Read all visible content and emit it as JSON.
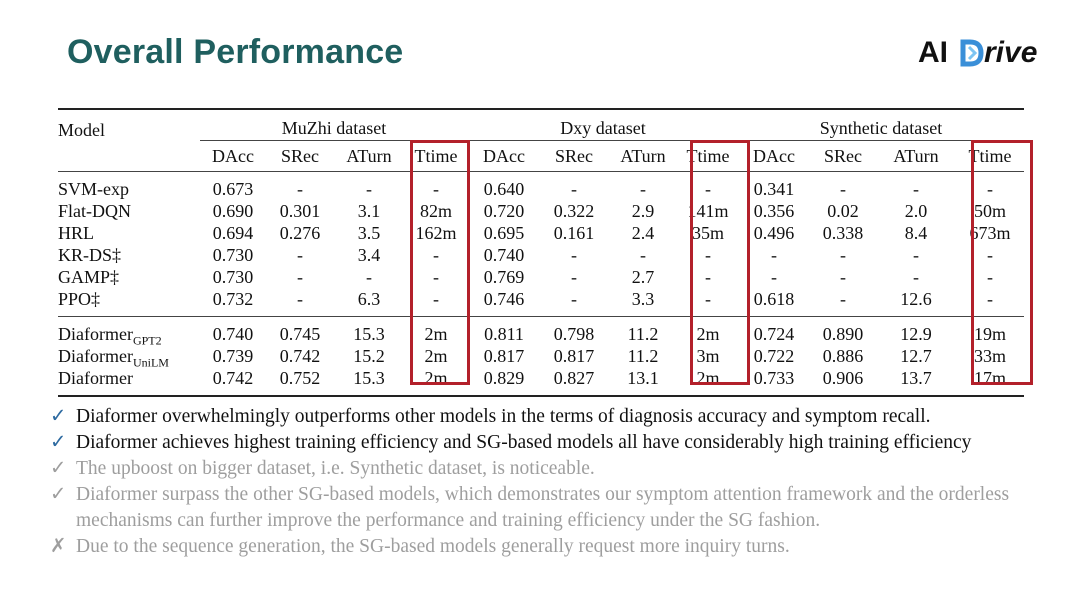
{
  "slide": {
    "title": "Overall Performance",
    "logo": {
      "ai": "AI",
      "drive_mark": "D",
      "drive_rest": "rive"
    }
  },
  "table": {
    "model_header": "Model",
    "datasets": [
      "MuZhi dataset",
      "Dxy dataset",
      "Synthetic dataset"
    ],
    "metrics": [
      "DAcc",
      "SRec",
      "ATurn",
      "Ttime"
    ],
    "baselines": [
      {
        "model": "SVM-exp",
        "cells": [
          "0.673",
          "-",
          "-",
          "-",
          "0.640",
          "-",
          "-",
          "-",
          "0.341",
          "-",
          "-",
          "-"
        ]
      },
      {
        "model": "Flat-DQN",
        "cells": [
          "0.690",
          "0.301",
          "3.1",
          "82m",
          "0.720",
          "0.322",
          "2.9",
          "141m",
          "0.356",
          "0.02",
          "2.0",
          "50m"
        ]
      },
      {
        "model": "HRL",
        "cells": [
          "0.694",
          "0.276",
          "3.5",
          "162m",
          "0.695",
          "0.161",
          "2.4",
          "35m",
          "0.496",
          "0.338",
          "8.4",
          "673m"
        ]
      },
      {
        "model": "KR-DS‡",
        "cells": [
          "0.730",
          "-",
          "3.4",
          "-",
          "0.740",
          "-",
          "-",
          "-",
          "-",
          "-",
          "-",
          "-"
        ]
      },
      {
        "model": "GAMP‡",
        "cells": [
          "0.730",
          "-",
          "-",
          "-",
          "0.769",
          "-",
          "2.7",
          "-",
          "-",
          "-",
          "-",
          "-"
        ]
      },
      {
        "model": "PPO‡",
        "cells": [
          "0.732",
          "-",
          "6.3",
          "-",
          "0.746",
          "-",
          "3.3",
          "-",
          "0.618",
          "-",
          "12.6",
          "-"
        ]
      }
    ],
    "diaformers": [
      {
        "model": "Diaformer",
        "sub": "GPT2",
        "cells": [
          "0.740",
          "0.745",
          "15.3",
          "2m",
          "0.811",
          "0.798",
          "11.2",
          "2m",
          "0.724",
          "0.890",
          "12.9",
          "19m"
        ]
      },
      {
        "model": "Diaformer",
        "sub": "UniLM",
        "cells": [
          "0.739",
          "0.742",
          "15.2",
          "2m",
          "0.817",
          "0.817",
          "11.2",
          "3m",
          "0.722",
          "0.886",
          "12.7",
          "33m"
        ]
      },
      {
        "model": "Diaformer",
        "sub": "",
        "cells": [
          "0.742",
          "0.752",
          "15.3",
          "2m",
          "0.829",
          "0.827",
          "13.1",
          "2m",
          "0.733",
          "0.906",
          "13.7",
          "17m"
        ]
      }
    ]
  },
  "bullets": [
    {
      "mark": "✓",
      "text": "Diaformer overwhelmingly outperforms other models in the terms of diagnosis accuracy and symptom recall."
    },
    {
      "mark": "✓",
      "text": "Diaformer achieves highest training efficiency and SG-based models all have considerably high training efficiency"
    },
    {
      "mark": "✓",
      "text": "The upboost on bigger dataset, i.e. Synthetic dataset, is noticeable."
    },
    {
      "mark": "✓",
      "text": "Diaformer surpass the other SG-based models, which demonstrates our symptom attention framework and the orderless mechanisms can further improve the performance and training efficiency under the SG fashion."
    },
    {
      "mark": "✗",
      "text": "Due to the sequence generation, the SG-based models generally request more inquiry turns."
    }
  ],
  "colors": {
    "title": "#1f5f5f",
    "highlight_box": "#b3202a",
    "active_check": "#2d6aa0",
    "faded_text": "#9e9e9e"
  }
}
